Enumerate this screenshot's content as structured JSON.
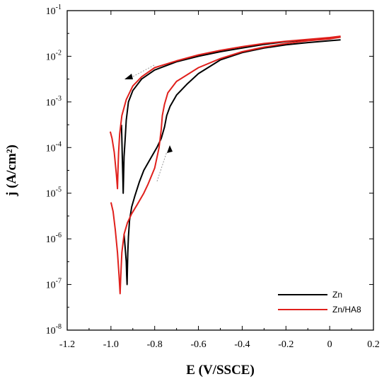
{
  "chart_data": {
    "type": "line",
    "title": "",
    "xlabel": "E (V/SSCE)",
    "ylabel": "j (A/cm²)",
    "xlim": [
      -1.2,
      0.2
    ],
    "ylim_log10": [
      -8,
      -1
    ],
    "yscale": "log",
    "x_ticks": [
      -1.2,
      -1.0,
      -0.8,
      -0.6,
      -0.4,
      -0.2,
      0,
      0.2
    ],
    "x_tick_labels": [
      "-1.2",
      "-1.0",
      "-0.8",
      "-0.6",
      "-0.4",
      "-0.2",
      "0",
      "0.2"
    ],
    "y_tick_exponents": [
      -8,
      -7,
      -6,
      -5,
      -4,
      -3,
      -2,
      -1
    ],
    "y_tick_base": "10",
    "grid": false,
    "legend_position": "bottom-right",
    "series": [
      {
        "name": "Zn",
        "color": "#000000",
        "branches": [
          [
            [
              -0.94,
              -5.9
            ],
            [
              -0.935,
              -6.2
            ],
            [
              -0.93,
              -6.5
            ],
            [
              -0.928,
              -6.8
            ],
            [
              -0.926,
              -7.0
            ],
            [
              -0.925,
              -6.7
            ],
            [
              -0.923,
              -6.3
            ],
            [
              -0.92,
              -5.95
            ],
            [
              -0.915,
              -5.6
            ],
            [
              -0.905,
              -5.3
            ],
            [
              -0.89,
              -5.05
            ],
            [
              -0.87,
              -4.75
            ],
            [
              -0.85,
              -4.5
            ],
            [
              -0.82,
              -4.25
            ],
            [
              -0.79,
              -4.0
            ],
            [
              -0.77,
              -3.8
            ],
            [
              -0.755,
              -3.55
            ],
            [
              -0.745,
              -3.3
            ],
            [
              -0.73,
              -3.1
            ],
            [
              -0.7,
              -2.85
            ],
            [
              -0.65,
              -2.6
            ],
            [
              -0.6,
              -2.38
            ],
            [
              -0.5,
              -2.08
            ],
            [
              -0.4,
              -1.92
            ],
            [
              -0.3,
              -1.82
            ],
            [
              -0.2,
              -1.75
            ],
            [
              -0.1,
              -1.7
            ],
            [
              0.0,
              -1.66
            ],
            [
              0.05,
              -1.64
            ]
          ],
          [
            [
              0.05,
              -1.58
            ],
            [
              0.0,
              -1.6
            ],
            [
              -0.1,
              -1.64
            ],
            [
              -0.2,
              -1.68
            ],
            [
              -0.3,
              -1.74
            ],
            [
              -0.4,
              -1.82
            ],
            [
              -0.5,
              -1.9
            ],
            [
              -0.6,
              -2.0
            ],
            [
              -0.7,
              -2.12
            ],
            [
              -0.8,
              -2.3
            ],
            [
              -0.86,
              -2.5
            ],
            [
              -0.9,
              -2.75
            ],
            [
              -0.92,
              -3.0
            ],
            [
              -0.93,
              -3.4
            ],
            [
              -0.935,
              -3.8
            ],
            [
              -0.94,
              -4.2
            ],
            [
              -0.942,
              -4.6
            ],
            [
              -0.944,
              -5.0
            ],
            [
              -0.946,
              -4.6
            ],
            [
              -0.948,
              -4.2
            ],
            [
              -0.95,
              -3.8
            ],
            [
              -0.952,
              -3.5
            ]
          ]
        ]
      },
      {
        "name": "Zn/HA8",
        "color": "#e0201c",
        "branches": [
          [
            [
              -1.0,
              -5.2
            ],
            [
              -0.99,
              -5.4
            ],
            [
              -0.98,
              -5.8
            ],
            [
              -0.97,
              -6.3
            ],
            [
              -0.963,
              -6.8
            ],
            [
              -0.958,
              -7.2
            ],
            [
              -0.955,
              -6.8
            ],
            [
              -0.95,
              -6.3
            ],
            [
              -0.94,
              -5.9
            ],
            [
              -0.925,
              -5.65
            ],
            [
              -0.905,
              -5.45
            ],
            [
              -0.88,
              -5.25
            ],
            [
              -0.85,
              -5.0
            ],
            [
              -0.83,
              -4.8
            ],
            [
              -0.8,
              -4.45
            ],
            [
              -0.78,
              -4.0
            ],
            [
              -0.77,
              -3.6
            ],
            [
              -0.765,
              -3.3
            ],
            [
              -0.755,
              -3.05
            ],
            [
              -0.74,
              -2.8
            ],
            [
              -0.7,
              -2.55
            ],
            [
              -0.6,
              -2.25
            ],
            [
              -0.5,
              -2.05
            ],
            [
              -0.4,
              -1.9
            ],
            [
              -0.3,
              -1.8
            ],
            [
              -0.2,
              -1.72
            ],
            [
              -0.1,
              -1.66
            ],
            [
              0.0,
              -1.62
            ],
            [
              0.05,
              -1.58
            ]
          ],
          [
            [
              0.05,
              -1.56
            ],
            [
              0.0,
              -1.59
            ],
            [
              -0.1,
              -1.63
            ],
            [
              -0.2,
              -1.67
            ],
            [
              -0.3,
              -1.72
            ],
            [
              -0.4,
              -1.79
            ],
            [
              -0.5,
              -1.87
            ],
            [
              -0.6,
              -1.97
            ],
            [
              -0.7,
              -2.1
            ],
            [
              -0.8,
              -2.25
            ],
            [
              -0.86,
              -2.45
            ],
            [
              -0.9,
              -2.65
            ],
            [
              -0.93,
              -2.95
            ],
            [
              -0.95,
              -3.3
            ],
            [
              -0.96,
              -3.7
            ],
            [
              -0.965,
              -4.1
            ],
            [
              -0.968,
              -4.5
            ],
            [
              -0.97,
              -4.9
            ],
            [
              -0.975,
              -4.6
            ],
            [
              -0.985,
              -4.1
            ],
            [
              -0.995,
              -3.8
            ],
            [
              -1.003,
              -3.65
            ]
          ]
        ]
      }
    ]
  }
}
